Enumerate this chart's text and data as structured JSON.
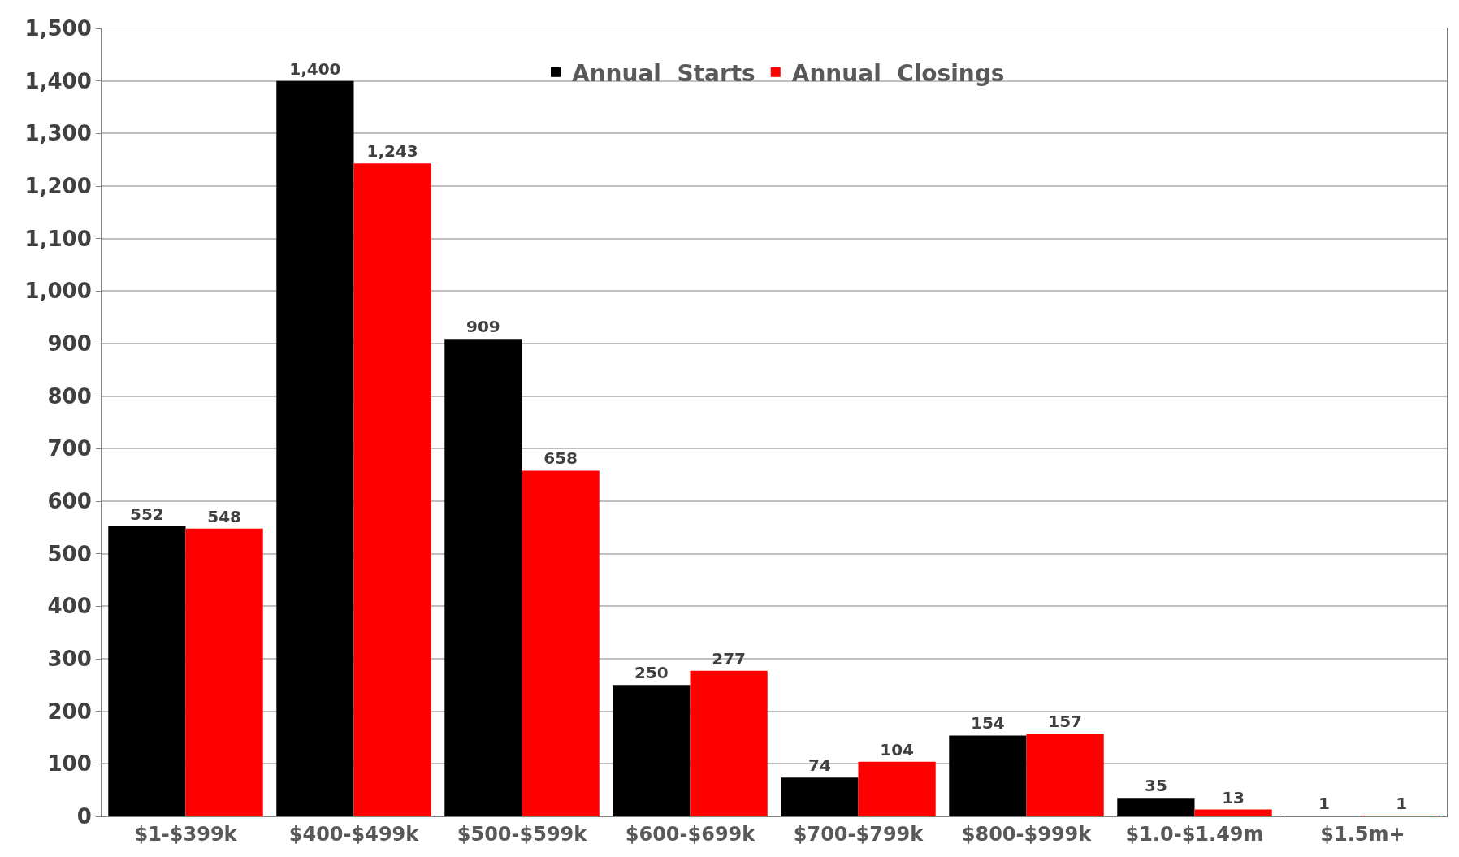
{
  "chart_data": {
    "type": "bar",
    "categories": [
      "$1-$399k",
      "$400-$499k",
      "$500-$599k",
      "$600-$699k",
      "$700-$799k",
      "$800-$999k",
      "$1.0-$1.49m",
      "$1.5m+"
    ],
    "series": [
      {
        "name": "Annual  Starts",
        "color": "#000000",
        "values": [
          552,
          1400,
          909,
          250,
          74,
          154,
          35,
          1
        ],
        "value_labels": [
          "552",
          "1,400",
          "909",
          "250",
          "74",
          "154",
          "35",
          "1"
        ]
      },
      {
        "name": "Annual  Closings",
        "color": "#ff0000",
        "values": [
          548,
          1243,
          658,
          277,
          104,
          157,
          13,
          1
        ],
        "value_labels": [
          "548",
          "1,243",
          "658",
          "277",
          "104",
          "157",
          "13",
          "1"
        ]
      }
    ],
    "ylim": [
      0,
      1500
    ],
    "yticks": [
      {
        "value": 0,
        "label": "0"
      },
      {
        "value": 100,
        "label": "100"
      },
      {
        "value": 200,
        "label": "200"
      },
      {
        "value": 300,
        "label": "300"
      },
      {
        "value": 400,
        "label": "400"
      },
      {
        "value": 500,
        "label": "500"
      },
      {
        "value": 600,
        "label": "600"
      },
      {
        "value": 700,
        "label": "700"
      },
      {
        "value": 800,
        "label": "800"
      },
      {
        "value": 900,
        "label": "900"
      },
      {
        "value": 1000,
        "label": "1,000"
      },
      {
        "value": 1100,
        "label": "1,100"
      },
      {
        "value": 1200,
        "label": "1,200"
      },
      {
        "value": 1300,
        "label": "1,300"
      },
      {
        "value": 1400,
        "label": "1,400"
      },
      {
        "value": 1500,
        "label": "1,500"
      }
    ],
    "grid": "y",
    "legend": "top"
  }
}
